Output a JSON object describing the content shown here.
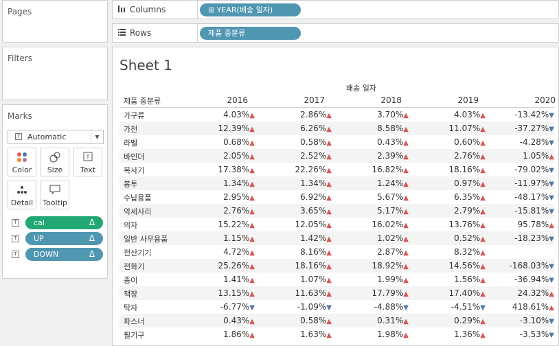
{
  "left": {
    "pages_title": "Pages",
    "filters_title": "Filters",
    "marks_title": "Marks",
    "mark_type": "Automatic",
    "mark_buttons": [
      {
        "label": "Color",
        "icon": "color-icon"
      },
      {
        "label": "Size",
        "icon": "size-icon"
      },
      {
        "label": "Text",
        "icon": "text-icon"
      },
      {
        "label": "Detail",
        "icon": "detail-icon"
      },
      {
        "label": "Tooltip",
        "icon": "tooltip-icon"
      }
    ],
    "mark_pills": [
      {
        "label": "cal",
        "delta": "Δ",
        "color": "#21a874"
      },
      {
        "label": "UP",
        "delta": "Δ",
        "color": "#4f96b1"
      },
      {
        "label": "DOWN",
        "delta": "Δ",
        "color": "#4f96b1"
      }
    ]
  },
  "shelves": {
    "columns_label": "Columns",
    "columns_pill": "⊞ YEAR(배송 일자)",
    "rows_label": "Rows",
    "rows_pill": "제품 중분류"
  },
  "sheet": {
    "title": "Sheet 1",
    "column_group": "배송 일자",
    "dimension_header": "제품 중분류",
    "years": [
      "2016",
      "2017",
      "2018",
      "2019",
      "2020"
    ],
    "rows": [
      {
        "category": "가구류",
        "values": [
          "4.03%",
          "2.86%",
          "3.70%",
          "4.03%",
          "-13.42%"
        ],
        "dirs": [
          "up",
          "up",
          "up",
          "up",
          "down"
        ]
      },
      {
        "category": "가전",
        "values": [
          "12.39%",
          "6.26%",
          "8.58%",
          "11.07%",
          "-37.27%"
        ],
        "dirs": [
          "up",
          "up",
          "up",
          "up",
          "down"
        ]
      },
      {
        "category": "라벨",
        "values": [
          "0.68%",
          "0.58%",
          "0.43%",
          "0.60%",
          "-4.28%"
        ],
        "dirs": [
          "up",
          "up",
          "up",
          "up",
          "down"
        ]
      },
      {
        "category": "바인더",
        "values": [
          "2.05%",
          "2.52%",
          "2.39%",
          "2.76%",
          "1.05%"
        ],
        "dirs": [
          "up",
          "up",
          "up",
          "up",
          "up"
        ]
      },
      {
        "category": "복사기",
        "values": [
          "17.38%",
          "22.26%",
          "16.82%",
          "18.16%",
          "-79.02%"
        ],
        "dirs": [
          "up",
          "up",
          "up",
          "up",
          "down"
        ]
      },
      {
        "category": "봉투",
        "values": [
          "1.34%",
          "1.34%",
          "1.24%",
          "0.97%",
          "-11.97%"
        ],
        "dirs": [
          "up",
          "up",
          "up",
          "up",
          "down"
        ]
      },
      {
        "category": "수납용품",
        "values": [
          "2.95%",
          "6.92%",
          "5.67%",
          "6.35%",
          "-48.17%"
        ],
        "dirs": [
          "up",
          "up",
          "up",
          "up",
          "down"
        ]
      },
      {
        "category": "악세사리",
        "values": [
          "2.76%",
          "3.65%",
          "5.17%",
          "2.79%",
          "-15.81%"
        ],
        "dirs": [
          "up",
          "up",
          "up",
          "up",
          "down"
        ]
      },
      {
        "category": "의자",
        "values": [
          "15.22%",
          "12.05%",
          "16.02%",
          "13.76%",
          "95.78%"
        ],
        "dirs": [
          "up",
          "up",
          "up",
          "up",
          "up"
        ]
      },
      {
        "category": "일반 사무용품",
        "values": [
          "1.15%",
          "1.42%",
          "1.02%",
          "0.52%",
          "-18.23%"
        ],
        "dirs": [
          "up",
          "up",
          "up",
          "up",
          "down"
        ]
      },
      {
        "category": "전산기기",
        "values": [
          "4.72%",
          "8.16%",
          "2.87%",
          "8.32%",
          ""
        ],
        "dirs": [
          "up",
          "up",
          "up",
          "up",
          ""
        ]
      },
      {
        "category": "전화기",
        "values": [
          "25.26%",
          "18.16%",
          "18.92%",
          "14.56%",
          "-168.03%"
        ],
        "dirs": [
          "up",
          "up",
          "up",
          "up",
          "down"
        ]
      },
      {
        "category": "종이",
        "values": [
          "1.41%",
          "1.07%",
          "1.99%",
          "1.56%",
          "-36.94%"
        ],
        "dirs": [
          "up",
          "up",
          "up",
          "up",
          "down"
        ]
      },
      {
        "category": "책장",
        "values": [
          "13.15%",
          "11.63%",
          "17.79%",
          "17.40%",
          "24.32%"
        ],
        "dirs": [
          "up",
          "up",
          "up",
          "up",
          "up"
        ]
      },
      {
        "category": "탁자",
        "values": [
          "-6.77%",
          "-1.09%",
          "-4.88%",
          "-4.51%",
          "418.61%"
        ],
        "dirs": [
          "down",
          "down",
          "down",
          "down",
          "up"
        ]
      },
      {
        "category": "파스너",
        "values": [
          "0.43%",
          "0.58%",
          "0.31%",
          "0.29%",
          "-3.10%"
        ],
        "dirs": [
          "up",
          "up",
          "up",
          "up",
          "down"
        ]
      },
      {
        "category": "필기구",
        "values": [
          "1.86%",
          "1.63%",
          "1.98%",
          "1.36%",
          "-3.53%"
        ],
        "dirs": [
          "up",
          "up",
          "up",
          "up",
          "down"
        ]
      }
    ],
    "up_color": "#d95555",
    "down_color": "#4e79a7"
  }
}
